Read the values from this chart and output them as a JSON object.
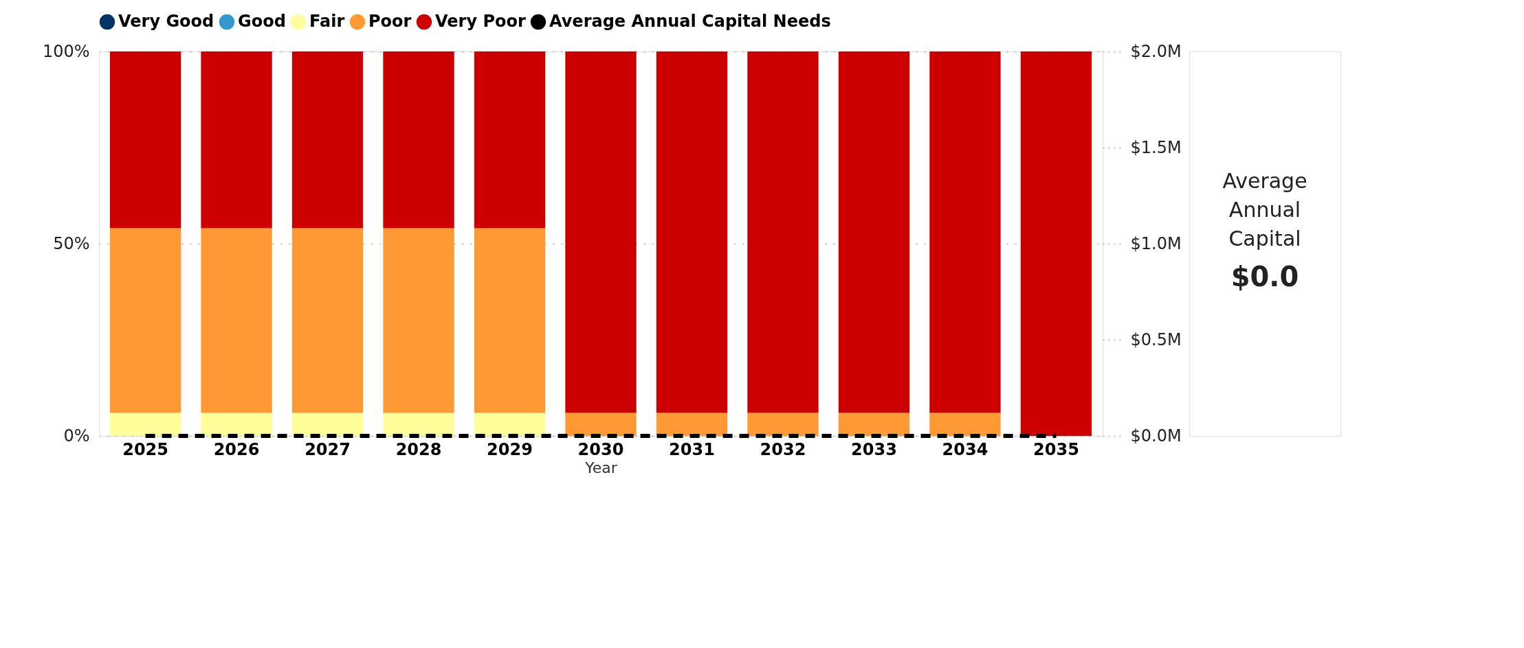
{
  "chart_data": [
    {
      "type": "bar",
      "stacked": true,
      "xlabel": "Year",
      "categories": [
        "2025",
        "2026",
        "2027",
        "2028",
        "2029",
        "2030",
        "2031",
        "2032",
        "2033",
        "2034",
        "2035"
      ],
      "series": [
        {
          "name": "Very Good",
          "color": "#003366",
          "values": [
            0,
            0,
            0,
            0,
            0,
            0,
            0,
            0,
            0,
            0,
            0
          ]
        },
        {
          "name": "Good",
          "color": "#3399cc",
          "values": [
            0,
            0,
            0,
            0,
            0,
            0,
            0,
            0,
            0,
            0,
            0
          ]
        },
        {
          "name": "Fair",
          "color": "#ffff99",
          "values": [
            6,
            6,
            6,
            6,
            6,
            0,
            0,
            0,
            0,
            0,
            0
          ]
        },
        {
          "name": "Poor",
          "color": "#ff9933",
          "values": [
            48,
            48,
            48,
            48,
            48,
            6,
            6,
            6,
            6,
            6,
            0
          ]
        },
        {
          "name": "Very Poor",
          "color": "#cc0000",
          "values": [
            46,
            46,
            46,
            46,
            46,
            94,
            94,
            94,
            94,
            94,
            100
          ]
        },
        {
          "name": "Average Annual Capital Needs",
          "color": "#000000",
          "type": "line",
          "axis": "y2",
          "line_style": "dashed",
          "marker": "none",
          "values": [
            0,
            0,
            0,
            0,
            0,
            0,
            0,
            0,
            0,
            0,
            0
          ]
        }
      ],
      "ylim": [
        0,
        100
      ],
      "yticks": [
        {
          "value": 0,
          "label": "0%"
        },
        {
          "value": 50,
          "label": "50%"
        },
        {
          "value": 100,
          "label": "100%"
        }
      ],
      "y2lim": [
        0,
        2
      ],
      "y2ticks": [
        {
          "value": 0,
          "label": "$0.0M"
        },
        {
          "value": 0.5,
          "label": "$0.5M"
        },
        {
          "value": 1,
          "label": "$1.0M"
        },
        {
          "value": 1.5,
          "label": "$1.5M"
        },
        {
          "value": 2,
          "label": "$2.0M"
        }
      ],
      "grid": "y",
      "legend": "top left"
    },
    {
      "type": "other",
      "title": "Average Annual Capital",
      "annotations": [
        "$0.0"
      ]
    }
  ]
}
